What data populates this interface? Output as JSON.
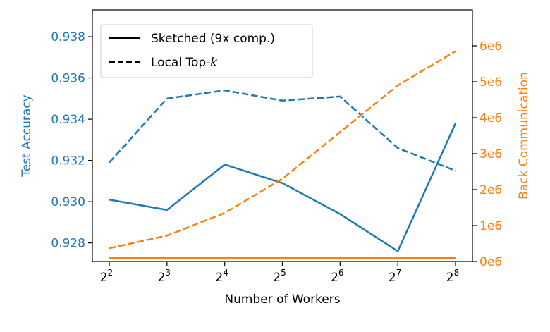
{
  "colors": {
    "left_axis": "#1f77b4",
    "right_axis": "#ff7f0e",
    "axis": "#000000"
  },
  "chart_data": {
    "type": "line",
    "xlabel": "Number of Workers",
    "x_tick_labels": [
      {
        "base": "2",
        "exp": "2"
      },
      {
        "base": "2",
        "exp": "3"
      },
      {
        "base": "2",
        "exp": "4"
      },
      {
        "base": "2",
        "exp": "5"
      },
      {
        "base": "2",
        "exp": "6"
      },
      {
        "base": "2",
        "exp": "7"
      },
      {
        "base": "2",
        "exp": "8"
      }
    ],
    "x": [
      4,
      8,
      16,
      32,
      64,
      128,
      256
    ],
    "x_scale": "log2",
    "y_left": {
      "label": "Test Accuracy",
      "ylim": [
        0.9271,
        0.9393
      ],
      "ticks": [
        0.928,
        0.93,
        0.932,
        0.934,
        0.936,
        0.938
      ],
      "tick_labels": [
        "0.928",
        "0.930",
        "0.932",
        "0.934",
        "0.936",
        "0.938"
      ]
    },
    "y_right": {
      "label": "Back Communication",
      "ylim": [
        0,
        7000000
      ],
      "ticks": [
        0,
        1000000,
        2000000,
        3000000,
        4000000,
        5000000,
        6000000
      ],
      "tick_labels": [
        "0e6",
        "1e6",
        "2e6",
        "3e6",
        "4e6",
        "5e6",
        "6e6"
      ]
    },
    "series": [
      {
        "name": "Sketched (9x comp.)",
        "axis": "left",
        "style": "solid",
        "color": "#1f77b4",
        "values": [
          0.9301,
          0.9296,
          0.9318,
          0.9309,
          0.9294,
          0.9276,
          0.9338
        ]
      },
      {
        "name": "Local Top-k",
        "axis": "left",
        "style": "dashed",
        "color": "#1f77b4",
        "values": [
          0.9319,
          0.935,
          0.9354,
          0.9349,
          0.9351,
          0.9326,
          0.9315
        ]
      },
      {
        "axis": "right",
        "style": "solid",
        "color": "#ff7f0e",
        "values": [
          100000,
          100000,
          100000,
          100000,
          100000,
          100000,
          100000
        ]
      },
      {
        "axis": "right",
        "style": "dashed",
        "color": "#ff7f0e",
        "values": [
          370000,
          720000,
          1350000,
          2300000,
          3600000,
          4900000,
          5850000
        ]
      }
    ],
    "legend": {
      "placement": "top-left",
      "entries": [
        {
          "label": "Sketched (9x comp.)",
          "style": "solid"
        },
        {
          "label": "Local Top-",
          "label_italic": "k",
          "style": "dashed"
        }
      ]
    },
    "grid": false
  }
}
